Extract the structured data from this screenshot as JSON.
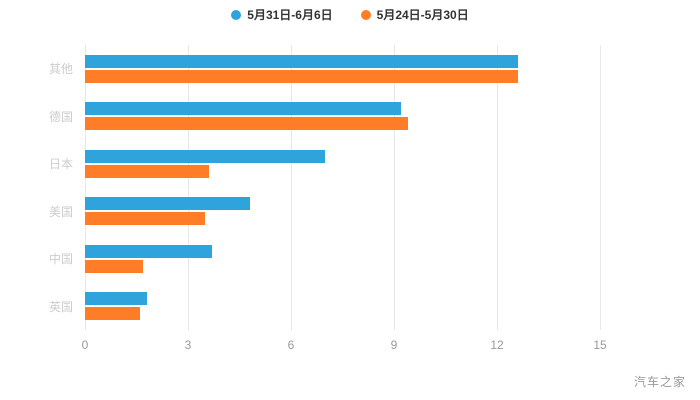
{
  "legend": {
    "items": [
      {
        "label": "5月31日-6月6日",
        "color": "#2EA3DC"
      },
      {
        "label": "5月24日-5月30日",
        "color": "#FF7D26"
      }
    ]
  },
  "watermark": "汽车之家",
  "chart_data": {
    "type": "bar",
    "orientation": "horizontal",
    "title": "",
    "xlabel": "",
    "ylabel": "",
    "categories": [
      "其他",
      "德国",
      "日本",
      "美国",
      "中国",
      "英国"
    ],
    "series": [
      {
        "name": "5月31日-6月6日",
        "color": "#2EA3DC",
        "values": [
          12.6,
          9.2,
          7.0,
          4.8,
          3.7,
          1.8
        ]
      },
      {
        "name": "5月24日-5月30日",
        "color": "#FF7D26",
        "values": [
          12.6,
          9.4,
          3.6,
          3.5,
          1.7,
          1.6
        ]
      }
    ],
    "xlim": [
      0,
      15
    ],
    "xticks": [
      0,
      3,
      6,
      9,
      12,
      15
    ],
    "grid": true,
    "legend_position": "top"
  }
}
